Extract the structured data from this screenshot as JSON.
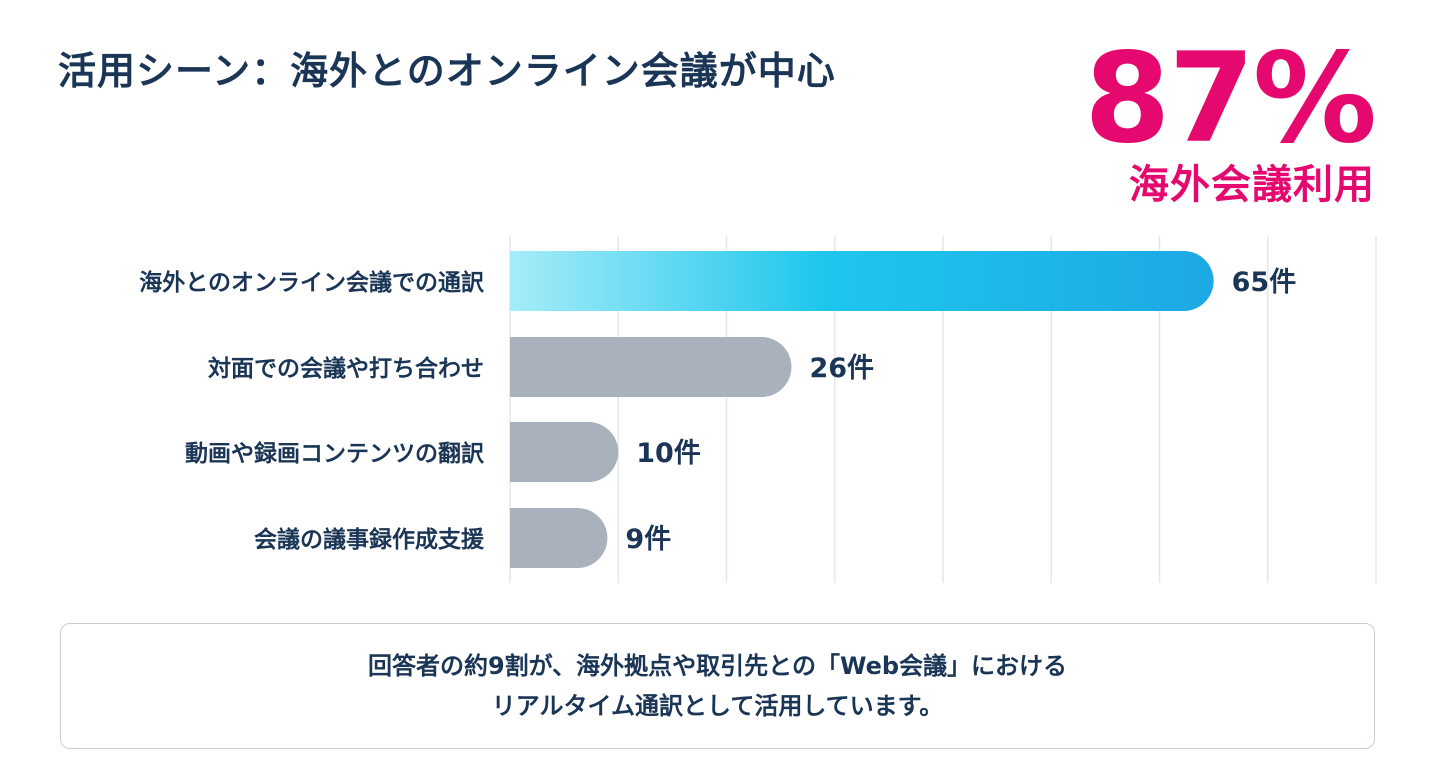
{
  "title": "活用シーン：海外とのオンライン会議が中心",
  "highlight": {
    "value": "87%",
    "label": "海外会議利用",
    "color": "#e5096f"
  },
  "chart_data": {
    "type": "bar",
    "orientation": "horizontal",
    "categories": [
      "海外とのオンライン会議での通訳",
      "対面での会議や打ち合わせ",
      "動画や録画コンテンツの翻訳",
      "会議の議事録作成支援"
    ],
    "values": [
      65,
      26,
      10,
      9
    ],
    "value_labels": [
      "65件",
      "26件",
      "10件",
      "9件"
    ],
    "xlim": [
      0,
      80
    ],
    "grid": true,
    "highlight_gradient": [
      "#a6ecf8",
      "#1ec6ec",
      "#1da8e4"
    ],
    "bar_color": "#a9b1bd",
    "gridline_color": "#e4e7ec"
  },
  "note": {
    "lines": [
      "回答者の約9割が、海外拠点や取引先との「Web会議」における",
      "リアルタイム通訳として活用しています。"
    ]
  }
}
